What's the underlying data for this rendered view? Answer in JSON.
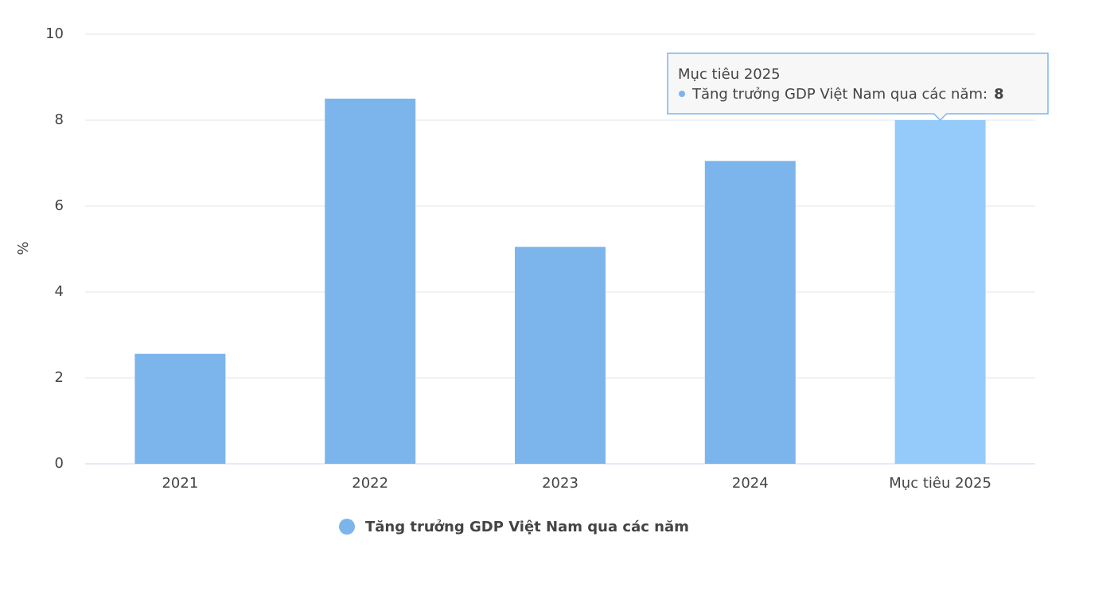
{
  "chart_data": {
    "type": "bar",
    "y_label": "%",
    "categories": [
      "2021",
      "2022",
      "2023",
      "2024",
      "Mục tiêu 2025"
    ],
    "series": [
      {
        "name": "Tăng trưởng GDP Việt Nam qua các năm",
        "color": "#7cb5ec",
        "values": [
          2.56,
          8.5,
          5.05,
          7.05,
          8
        ]
      }
    ],
    "ylim": [
      0,
      10
    ],
    "yticks": [
      0,
      2,
      4,
      6,
      8,
      10
    ],
    "grid": true,
    "highlight": {
      "index": 4,
      "color": "#95cbfa"
    }
  }
}
